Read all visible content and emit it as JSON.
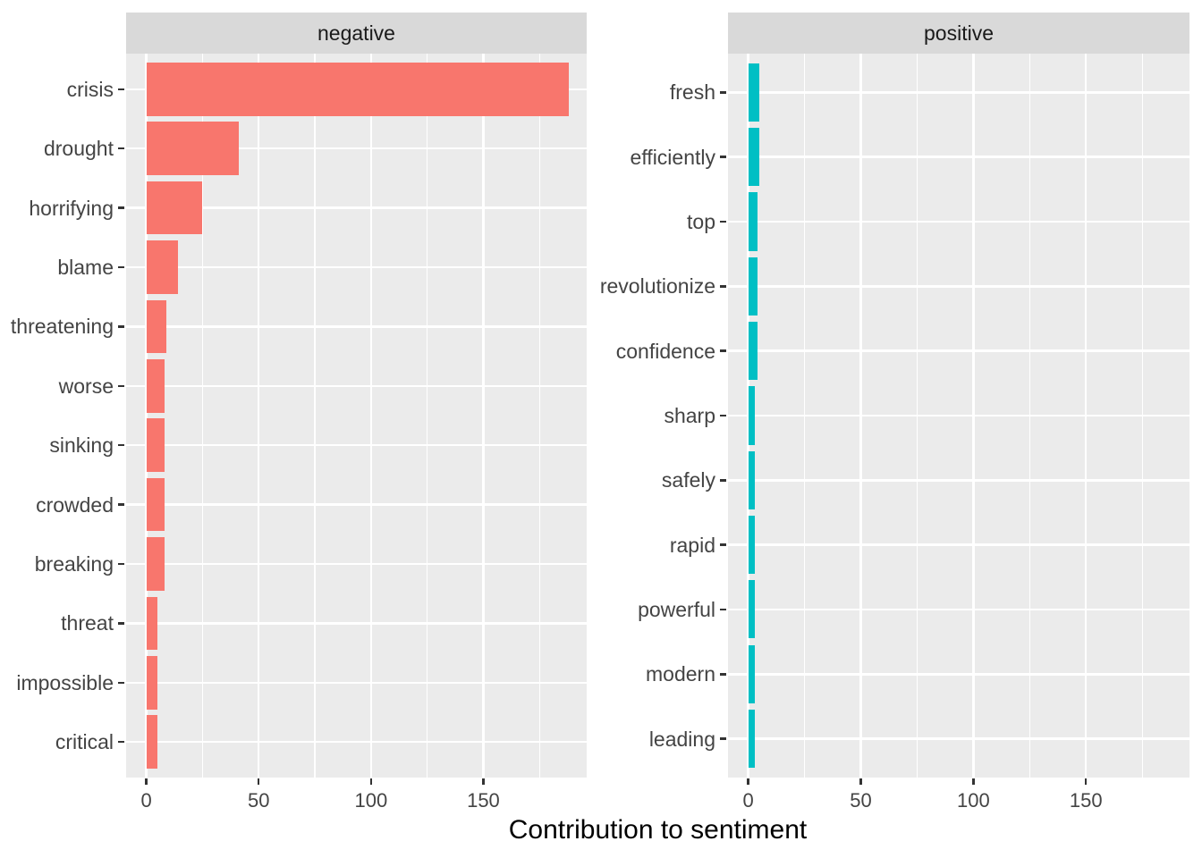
{
  "chart_data": {
    "type": "bar",
    "orientation": "horizontal",
    "xlabel": "Contribution to sentiment",
    "x_ticks": [
      0,
      50,
      100,
      150
    ],
    "x_minor_ticks": [
      25,
      75,
      125,
      175
    ],
    "xlim": [
      -9,
      196
    ],
    "grid": "on",
    "legend": "none",
    "facets": [
      {
        "label": "negative",
        "bar_color": "#F8766D",
        "categories": [
          "crisis",
          "drought",
          "horrifying",
          "blame",
          "threatening",
          "worse",
          "sinking",
          "crowded",
          "breaking",
          "threat",
          "impossible",
          "critical"
        ],
        "values": [
          188,
          41,
          25,
          14,
          9,
          8,
          8,
          8,
          8,
          5,
          5,
          5
        ]
      },
      {
        "label": "positive",
        "bar_color": "#00BFC4",
        "categories": [
          "fresh",
          "efficiently",
          "top",
          "revolutionize",
          "confidence",
          "sharp",
          "safely",
          "rapid",
          "powerful",
          "modern",
          "leading"
        ],
        "values": [
          5,
          5,
          4,
          4,
          4,
          3,
          3,
          3,
          3,
          3,
          3
        ]
      }
    ],
    "colors": {
      "panel_bg": "#EBEBEB",
      "strip_bg": "#D9D9D9",
      "gridline": "#FFFFFF",
      "tick": "#333333",
      "axis_text": "#444444",
      "strip_text": "#1A1A1A",
      "title_text": "#000000",
      "figure_bg": "#FFFFFF"
    }
  }
}
